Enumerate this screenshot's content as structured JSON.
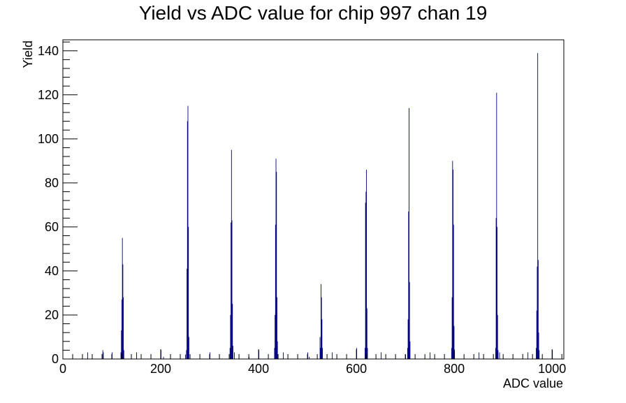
{
  "chart_data": {
    "type": "bar",
    "title": "Yield vs ADC value for chip 997 chan 19",
    "xlabel": "ADC value",
    "ylabel": "Yield",
    "xlim": [
      0,
      1024
    ],
    "ylim": [
      0,
      145
    ],
    "xticks": [
      0,
      200,
      400,
      600,
      800,
      1000
    ],
    "yticks": [
      0,
      20,
      40,
      60,
      80,
      100,
      120,
      140
    ],
    "x_minor_step": 20,
    "y_minor_step": 4,
    "grid": false,
    "series": [
      {
        "color": "#00007f",
        "points": [
          {
            "x": 50,
            "y": 3
          },
          {
            "x": 81,
            "y": 4
          },
          {
            "x": 82,
            "y": 3
          },
          {
            "x": 100,
            "y": 3
          },
          {
            "x": 118,
            "y": 3
          },
          {
            "x": 119,
            "y": 13
          },
          {
            "x": 120,
            "y": 27
          },
          {
            "x": 121,
            "y": 55
          },
          {
            "x": 122,
            "y": 43
          },
          {
            "x": 123,
            "y": 28
          },
          {
            "x": 124,
            "y": 4
          },
          {
            "x": 150,
            "y": 3
          },
          {
            "x": 200,
            "y": 4
          },
          {
            "x": 205,
            "y": 1
          },
          {
            "x": 250,
            "y": 2
          },
          {
            "x": 252,
            "y": 4
          },
          {
            "x": 253,
            "y": 41
          },
          {
            "x": 254,
            "y": 108
          },
          {
            "x": 255,
            "y": 115
          },
          {
            "x": 256,
            "y": 60
          },
          {
            "x": 257,
            "y": 10
          },
          {
            "x": 300,
            "y": 3
          },
          {
            "x": 341,
            "y": 5
          },
          {
            "x": 342,
            "y": 20
          },
          {
            "x": 343,
            "y": 62
          },
          {
            "x": 344,
            "y": 95
          },
          {
            "x": 345,
            "y": 63
          },
          {
            "x": 346,
            "y": 25
          },
          {
            "x": 347,
            "y": 6
          },
          {
            "x": 350,
            "y": 3
          },
          {
            "x": 380,
            "y": 1
          },
          {
            "x": 400,
            "y": 4
          },
          {
            "x": 432,
            "y": 5
          },
          {
            "x": 433,
            "y": 20
          },
          {
            "x": 434,
            "y": 61
          },
          {
            "x": 435,
            "y": 91
          },
          {
            "x": 436,
            "y": 85
          },
          {
            "x": 437,
            "y": 28
          },
          {
            "x": 438,
            "y": 8
          },
          {
            "x": 450,
            "y": 3
          },
          {
            "x": 500,
            "y": 3
          },
          {
            "x": 503,
            "y": 1
          },
          {
            "x": 525,
            "y": 10
          },
          {
            "x": 526,
            "y": 5
          },
          {
            "x": 527,
            "y": 34
          },
          {
            "x": 528,
            "y": 28
          },
          {
            "x": 529,
            "y": 18
          },
          {
            "x": 530,
            "y": 5
          },
          {
            "x": 550,
            "y": 3
          },
          {
            "x": 600,
            "y": 5
          },
          {
            "x": 617,
            "y": 5
          },
          {
            "x": 618,
            "y": 71
          },
          {
            "x": 619,
            "y": 76
          },
          {
            "x": 620,
            "y": 86
          },
          {
            "x": 621,
            "y": 23
          },
          {
            "x": 622,
            "y": 5
          },
          {
            "x": 650,
            "y": 3
          },
          {
            "x": 700,
            "y": 2
          },
          {
            "x": 704,
            "y": 5
          },
          {
            "x": 705,
            "y": 18
          },
          {
            "x": 706,
            "y": 67
          },
          {
            "x": 707,
            "y": 114
          },
          {
            "x": 708,
            "y": 35
          },
          {
            "x": 709,
            "y": 8
          },
          {
            "x": 750,
            "y": 3
          },
          {
            "x": 794,
            "y": 5
          },
          {
            "x": 795,
            "y": 28
          },
          {
            "x": 796,
            "y": 90
          },
          {
            "x": 797,
            "y": 86
          },
          {
            "x": 798,
            "y": 61
          },
          {
            "x": 799,
            "y": 15
          },
          {
            "x": 800,
            "y": 4
          },
          {
            "x": 850,
            "y": 3
          },
          {
            "x": 884,
            "y": 5
          },
          {
            "x": 885,
            "y": 64
          },
          {
            "x": 886,
            "y": 121
          },
          {
            "x": 887,
            "y": 60
          },
          {
            "x": 888,
            "y": 20
          },
          {
            "x": 889,
            "y": 4
          },
          {
            "x": 892,
            "y": 3
          },
          {
            "x": 950,
            "y": 3
          },
          {
            "x": 967,
            "y": 5
          },
          {
            "x": 968,
            "y": 22
          },
          {
            "x": 969,
            "y": 42
          },
          {
            "x": 970,
            "y": 139
          },
          {
            "x": 971,
            "y": 45
          },
          {
            "x": 972,
            "y": 12
          },
          {
            "x": 973,
            "y": 4
          },
          {
            "x": 1000,
            "y": 4
          }
        ]
      }
    ]
  }
}
